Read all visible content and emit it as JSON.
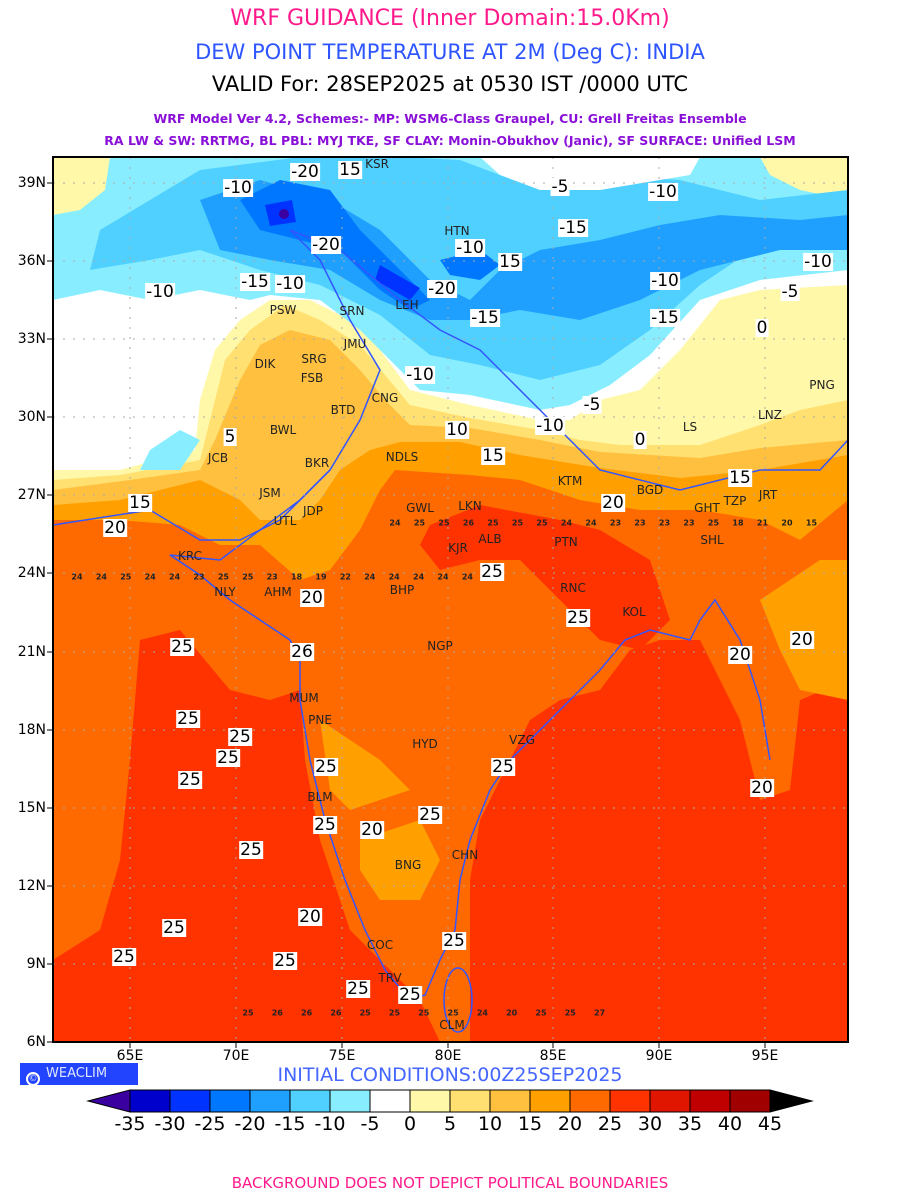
{
  "header": {
    "title": "WRF GUIDANCE (Inner Domain:15.0Km)",
    "variable": "DEW POINT TEMPERATURE AT 2M (Deg C): INDIA",
    "valid": "VALID For: 28SEP2025 at 0530 IST /0000 UTC",
    "model_line1": "WRF Model Ver 4.2, Schemes:- MP: WSM6-Class Graupel, CU: Grell Freitas Ensemble",
    "model_line2": "RA LW & SW: RRTMG, BL PBL: MYJ TKE, SF CLAY: Monin-Obukhov (Janic), SF SURFACE: Unified LSM"
  },
  "axes": {
    "lat_labels": [
      "39N",
      "36N",
      "33N",
      "30N",
      "27N",
      "24N",
      "21N",
      "18N",
      "15N",
      "12N",
      "9N",
      "6N"
    ],
    "lon_labels": [
      "65E",
      "70E",
      "75E",
      "80E",
      "85E",
      "90E",
      "95E"
    ]
  },
  "cities": [
    "KSR",
    "HTN",
    "LEH",
    "SRN",
    "PSW",
    "JMU",
    "DIK",
    "SRG",
    "FSB",
    "CNG",
    "BTD",
    "BWL",
    "JCB",
    "BKR",
    "NDLS",
    "PNG",
    "LS",
    "LNZ",
    "KTM",
    "BGD",
    "TZP",
    "JRT",
    "GHT",
    "SHL",
    "LKN",
    "GWL",
    "ALB",
    "KJR",
    "PTN",
    "RNC",
    "KOL",
    "BHP",
    "JSM",
    "JDP",
    "UTL",
    "KRC",
    "NLY",
    "AHM",
    "NGP",
    "MUM",
    "PNE",
    "HYD",
    "VZG",
    "BLM",
    "BNG",
    "CHN",
    "COC",
    "TRV",
    "CLM"
  ],
  "contour_labels": [
    "-20",
    "15",
    "-10",
    "-5",
    "-10",
    "-15",
    "-20",
    "-10",
    "15",
    "-10",
    "-10",
    "-15",
    "-10",
    "-20",
    "-15",
    "-10",
    "-15",
    "0",
    "-5",
    "5",
    "-10",
    "-10",
    "10",
    "-5",
    "15",
    "0",
    "15",
    "20",
    "20",
    "15",
    "20",
    "25",
    "25",
    "20",
    "20",
    "25",
    "25",
    "25",
    "25",
    "25",
    "25",
    "26",
    "25",
    "20",
    "25",
    "20",
    "25",
    "25",
    "25",
    "25",
    "25",
    "25",
    "25",
    "20",
    "25"
  ],
  "grid_values": {
    "row_24n": [
      24,
      24,
      25,
      24,
      24,
      23,
      25,
      25,
      23,
      18,
      19,
      22,
      24,
      24,
      24,
      24,
      24
    ],
    "row_26n": [
      24,
      25,
      25,
      26,
      25,
      25,
      25,
      24,
      24,
      23,
      23,
      23,
      23,
      25,
      18,
      21,
      20,
      15
    ],
    "row_8n": [
      25,
      26,
      26,
      26,
      25,
      25,
      25,
      25,
      24,
      20,
      25,
      25,
      27
    ]
  },
  "footer": {
    "brand": "WEACLIM",
    "copyright_symbol": "©",
    "initial_conditions": "INITIAL CONDITIONS:00Z25SEP2025",
    "disclaimer": "BACKGROUND DOES NOT DEPICT POLITICAL BOUNDARIES"
  },
  "colorbar": {
    "labels": [
      "-35",
      "-30",
      "-25",
      "-20",
      "-15",
      "-10",
      "-5",
      "0",
      "5",
      "10",
      "15",
      "20",
      "25",
      "30",
      "35",
      "40",
      "45"
    ],
    "colors": [
      "#0000cc",
      "#0033ff",
      "#0077ff",
      "#1fa0ff",
      "#50d0ff",
      "#88eeff",
      "#ffffff",
      "#fff8a8",
      "#ffe070",
      "#ffc040",
      "#ffa000",
      "#ff6a00",
      "#ff3300",
      "#e01600",
      "#c00000",
      "#a00000"
    ],
    "under_color": "#3a00a0",
    "over_color": "#000000"
  }
}
